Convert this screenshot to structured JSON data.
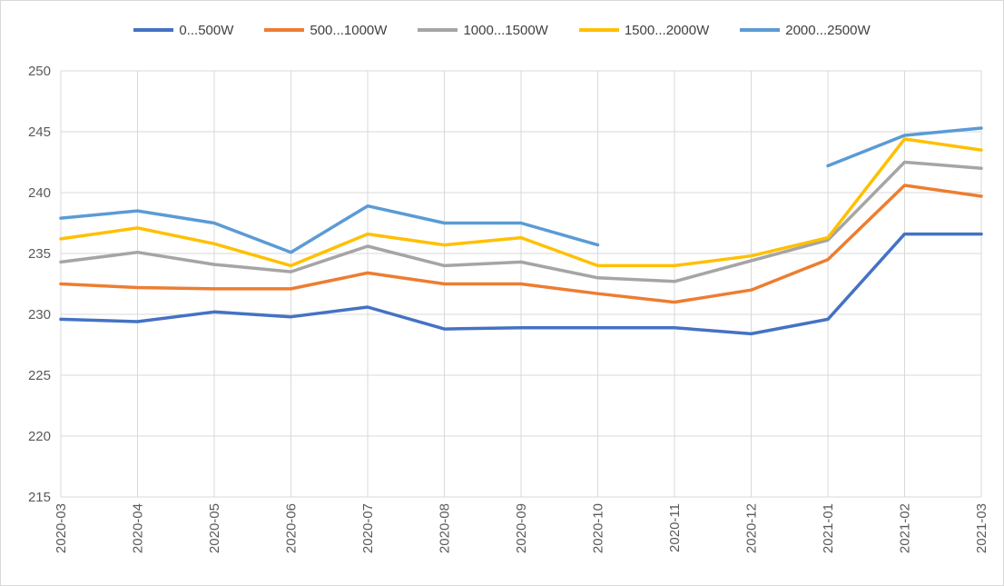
{
  "chart_data": {
    "type": "line",
    "title": "",
    "xlabel": "",
    "ylabel": "",
    "ylim": [
      215,
      250
    ],
    "yticks": [
      215,
      220,
      225,
      230,
      235,
      240,
      245,
      250
    ],
    "grid": true,
    "legend_position": "top",
    "categories": [
      "2020-03",
      "2020-04",
      "2020-05",
      "2020-06",
      "2020-07",
      "2020-08",
      "2020-09",
      "2020-10",
      "2020-11",
      "2020-12",
      "2021-01",
      "2021-02",
      "2021-03"
    ],
    "series": [
      {
        "name": "0...500W",
        "color": "#4472c4",
        "values": [
          229.6,
          229.4,
          230.2,
          229.8,
          230.6,
          228.8,
          228.9,
          228.9,
          228.9,
          228.4,
          229.6,
          236.6,
          236.6
        ]
      },
      {
        "name": "500...1000W",
        "color": "#ed7d31",
        "values": [
          232.5,
          232.2,
          232.1,
          232.1,
          233.4,
          232.5,
          232.5,
          231.7,
          231.0,
          232.0,
          234.5,
          240.6,
          239.7
        ]
      },
      {
        "name": "1000...1500W",
        "color": "#a5a5a5",
        "values": [
          234.3,
          235.1,
          234.1,
          233.5,
          235.6,
          234.0,
          234.3,
          233.0,
          232.7,
          234.4,
          236.1,
          242.5,
          242.0
        ]
      },
      {
        "name": "1500...2000W",
        "color": "#ffc000",
        "values": [
          236.2,
          237.1,
          235.8,
          234.0,
          236.6,
          235.7,
          236.3,
          234.0,
          234.0,
          234.8,
          236.3,
          244.4,
          243.5
        ]
      },
      {
        "name": "2000...2500W",
        "color": "#5b9bd5",
        "values": [
          237.9,
          238.5,
          237.5,
          235.1,
          238.9,
          237.5,
          237.5,
          235.7,
          null,
          null,
          242.2,
          244.7,
          245.3
        ]
      }
    ]
  }
}
